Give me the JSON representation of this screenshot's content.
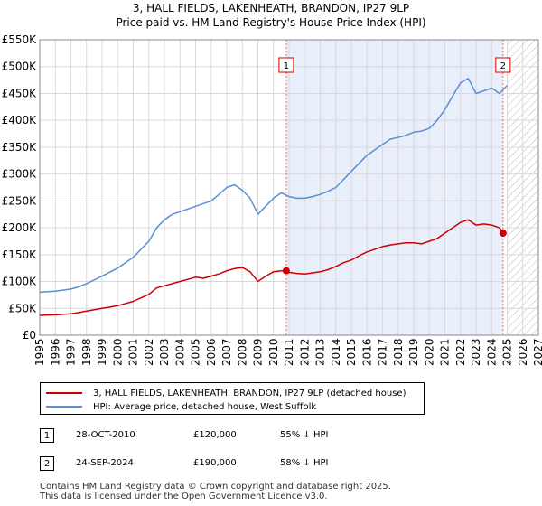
{
  "title": "3, HALL FIELDS, LAKENHEATH, BRANDON, IP27 9LP",
  "subtitle": "Price paid vs. HM Land Registry's House Price Index (HPI)",
  "chart_data": {
    "type": "line",
    "title": "3, HALL FIELDS, LAKENHEATH, BRANDON, IP27 9LP",
    "subtitle": "Price paid vs. HM Land Registry's House Price Index (HPI)",
    "xlim": [
      1995,
      2027
    ],
    "ylim": [
      0,
      550000
    ],
    "x_ticks": [
      1995,
      1996,
      1997,
      1998,
      1999,
      2000,
      2001,
      2002,
      2003,
      2004,
      2005,
      2006,
      2007,
      2008,
      2009,
      2010,
      2011,
      2012,
      2013,
      2014,
      2015,
      2016,
      2017,
      2018,
      2019,
      2020,
      2021,
      2022,
      2023,
      2024,
      2025,
      2026,
      2027
    ],
    "y_ticks": [
      {
        "value": 0,
        "label": "£0"
      },
      {
        "value": 50000,
        "label": "£50K"
      },
      {
        "value": 100000,
        "label": "£100K"
      },
      {
        "value": 150000,
        "label": "£150K"
      },
      {
        "value": 200000,
        "label": "£200K"
      },
      {
        "value": 250000,
        "label": "£250K"
      },
      {
        "value": 300000,
        "label": "£300K"
      },
      {
        "value": 350000,
        "label": "£350K"
      },
      {
        "value": 400000,
        "label": "£400K"
      },
      {
        "value": 450000,
        "label": "£450K"
      },
      {
        "value": 500000,
        "label": "£500K"
      },
      {
        "value": 550000,
        "label": "£550K"
      }
    ],
    "grid": true,
    "shaded_region": [
      2010.82,
      2024.73
    ],
    "hatched_from": 2025.0,
    "series": [
      {
        "name": "3, HALL FIELDS, LAKENHEATH, BRANDON, IP27 9LP (detached house)",
        "color": "#cc0000",
        "x": [
          1995.0,
          1996.0,
          1997.0,
          1997.5,
          1998.0,
          1999.0,
          2000.0,
          2001.0,
          2002.0,
          2002.5,
          2003.0,
          2003.5,
          2004.0,
          2004.5,
          2005.0,
          2005.5,
          2006.0,
          2006.5,
          2007.0,
          2007.5,
          2008.0,
          2008.5,
          2009.0,
          2009.5,
          2010.0,
          2010.5,
          2010.82,
          2011.0,
          2011.5,
          2012.0,
          2012.5,
          2013.0,
          2013.5,
          2014.0,
          2014.5,
          2015.0,
          2015.5,
          2016.0,
          2016.5,
          2017.0,
          2017.5,
          2018.0,
          2018.5,
          2019.0,
          2019.5,
          2020.0,
          2020.5,
          2021.0,
          2021.5,
          2022.0,
          2022.5,
          2023.0,
          2023.5,
          2024.0,
          2024.5,
          2024.73
        ],
        "values": [
          37000,
          38000,
          40000,
          42000,
          45000,
          50000,
          55000,
          63000,
          76000,
          88000,
          92000,
          96000,
          100000,
          104000,
          108000,
          106000,
          110000,
          114000,
          120000,
          124000,
          126000,
          118000,
          100000,
          110000,
          118000,
          120000,
          120000,
          117000,
          115000,
          114000,
          116000,
          118000,
          122000,
          128000,
          135000,
          140000,
          148000,
          155000,
          160000,
          165000,
          168000,
          170000,
          172000,
          172000,
          170000,
          175000,
          180000,
          190000,
          200000,
          210000,
          215000,
          205000,
          207000,
          205000,
          200000,
          190000
        ]
      },
      {
        "name": "HPI: Average price, detached house, West Suffolk",
        "color": "#5b8fcf",
        "x": [
          1995.0,
          1996.0,
          1997.0,
          1997.5,
          1998.0,
          1999.0,
          2000.0,
          2001.0,
          2002.0,
          2002.5,
          2003.0,
          2003.5,
          2004.0,
          2004.5,
          2005.0,
          2005.5,
          2006.0,
          2006.5,
          2007.0,
          2007.5,
          2008.0,
          2008.5,
          2009.0,
          2009.5,
          2010.0,
          2010.5,
          2011.0,
          2011.5,
          2012.0,
          2012.5,
          2013.0,
          2013.5,
          2014.0,
          2014.5,
          2015.0,
          2015.5,
          2016.0,
          2016.5,
          2017.0,
          2017.5,
          2018.0,
          2018.5,
          2019.0,
          2019.5,
          2020.0,
          2020.5,
          2021.0,
          2021.5,
          2022.0,
          2022.5,
          2023.0,
          2023.5,
          2024.0,
          2024.5,
          2025.0
        ],
        "values": [
          80000,
          82000,
          86000,
          90000,
          96000,
          110000,
          125000,
          145000,
          175000,
          200000,
          215000,
          225000,
          230000,
          235000,
          240000,
          245000,
          250000,
          262000,
          275000,
          280000,
          270000,
          255000,
          225000,
          240000,
          255000,
          265000,
          258000,
          255000,
          255000,
          258000,
          262000,
          268000,
          275000,
          290000,
          305000,
          320000,
          335000,
          345000,
          355000,
          365000,
          368000,
          372000,
          378000,
          380000,
          385000,
          400000,
          420000,
          445000,
          470000,
          478000,
          450000,
          455000,
          460000,
          450000,
          465000
        ]
      }
    ],
    "annotations": [
      {
        "label": "1",
        "x": 2010.82,
        "value": 120000
      },
      {
        "label": "2",
        "x": 2024.73,
        "value": 190000
      }
    ]
  },
  "legend": {
    "items": [
      {
        "label": "3, HALL FIELDS, LAKENHEATH, BRANDON, IP27 9LP (detached house)",
        "color": "#cc0000"
      },
      {
        "label": "HPI: Average price, detached house, West Suffolk",
        "color": "#5b8fcf"
      }
    ]
  },
  "transactions": [
    {
      "num": "1",
      "date": "28-OCT-2010",
      "price": "£120,000",
      "hpi": "55% ↓ HPI"
    },
    {
      "num": "2",
      "date": "24-SEP-2024",
      "price": "£190,000",
      "hpi": "58% ↓ HPI"
    }
  ],
  "footer": {
    "line1": "Contains HM Land Registry data © Crown copyright and database right 2025.",
    "line2": "This data is licensed under the Open Government Licence v3.0."
  }
}
